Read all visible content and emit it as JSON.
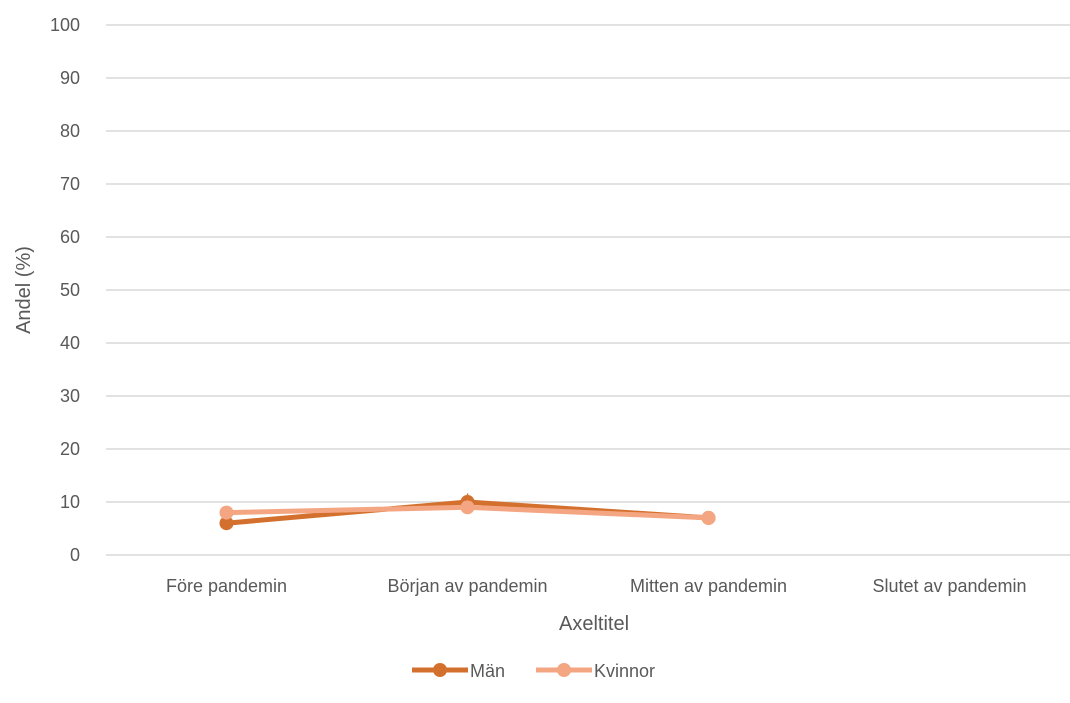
{
  "chart_data": {
    "type": "line",
    "categories": [
      "Före pandemin",
      "Början av pandemin",
      "Mitten av pandemin",
      "Slutet av pandemin"
    ],
    "series": [
      {
        "name": "Män",
        "values": [
          6,
          10,
          7,
          null
        ],
        "color": "#D4702E"
      },
      {
        "name": "Kvinnor",
        "values": [
          8,
          9,
          7,
          null
        ],
        "color": "#F4A683"
      }
    ],
    "title": "",
    "xlabel": "Axeltitel",
    "ylabel": "Andel (%)",
    "ylim": [
      0,
      100
    ],
    "yticks": [
      0,
      10,
      20,
      30,
      40,
      50,
      60,
      70,
      80,
      90,
      100
    ],
    "grid": true,
    "legend_position": "bottom",
    "annotations": [
      {
        "text": "*",
        "category": "Början av pandemin",
        "value": 12.5,
        "color": "#D4702E"
      }
    ]
  }
}
